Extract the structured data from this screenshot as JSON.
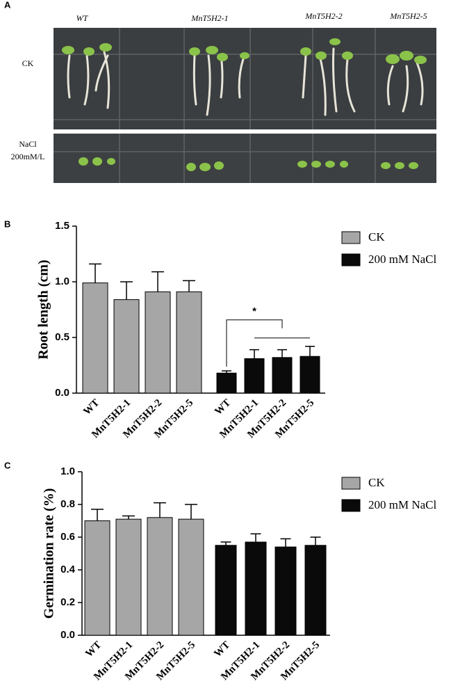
{
  "panel_a": {
    "label": "A",
    "columns": [
      "WT",
      "MnT5H2-1",
      "MnT5H2-2",
      "MnT5H2-5"
    ],
    "rows": [
      [
        "CK"
      ],
      [
        "NaCl",
        "200mM/L"
      ]
    ]
  },
  "chart_data": [
    {
      "type": "bar",
      "panel": "B",
      "y_label": "Root length (cm)",
      "categories": [
        "WT",
        "MnT5H2-1",
        "MnT5H2-2",
        "MnT5H2-5"
      ],
      "series": [
        {
          "name": "CK",
          "color": "#a6a6a6",
          "values": [
            0.99,
            0.84,
            0.91,
            0.91
          ],
          "errors": [
            0.17,
            0.16,
            0.18,
            0.1
          ]
        },
        {
          "name": "200 mM NaCl",
          "color": "#0a0a0a",
          "values": [
            0.18,
            0.31,
            0.32,
            0.33
          ],
          "errors": [
            0.02,
            0.08,
            0.07,
            0.09
          ]
        }
      ],
      "ylim": [
        0,
        1.5
      ],
      "yticks": [
        {
          "value": 0,
          "label": "0.0"
        },
        {
          "value": 0.5,
          "label": "0.5"
        },
        {
          "value": 1,
          "label": "1.0"
        },
        {
          "value": 1.5,
          "label": "1.5"
        }
      ],
      "annotation": "*",
      "legend": "outside-right"
    },
    {
      "type": "bar",
      "panel": "C",
      "y_label": "Germination rate (%)",
      "categories": [
        "WT",
        "MnT5H2-1",
        "MnT5H2-2",
        "MnT5H2-5"
      ],
      "series": [
        {
          "name": "CK",
          "color": "#a6a6a6",
          "values": [
            0.7,
            0.71,
            0.72,
            0.71
          ],
          "errors": [
            0.07,
            0.02,
            0.09,
            0.09
          ]
        },
        {
          "name": "200 mM NaCl",
          "color": "#0a0a0a",
          "values": [
            0.55,
            0.57,
            0.54,
            0.55
          ],
          "errors": [
            0.02,
            0.05,
            0.05,
            0.05
          ]
        }
      ],
      "ylim": [
        0,
        1
      ],
      "yticks": [
        {
          "value": 0,
          "label": "0.0"
        },
        {
          "value": 0.2,
          "label": "0.2"
        },
        {
          "value": 0.4,
          "label": "0.4"
        },
        {
          "value": 0.6,
          "label": "0.6"
        },
        {
          "value": 0.8,
          "label": "0.8"
        },
        {
          "value": 1,
          "label": "1.0"
        }
      ],
      "legend": "outside-right"
    }
  ]
}
